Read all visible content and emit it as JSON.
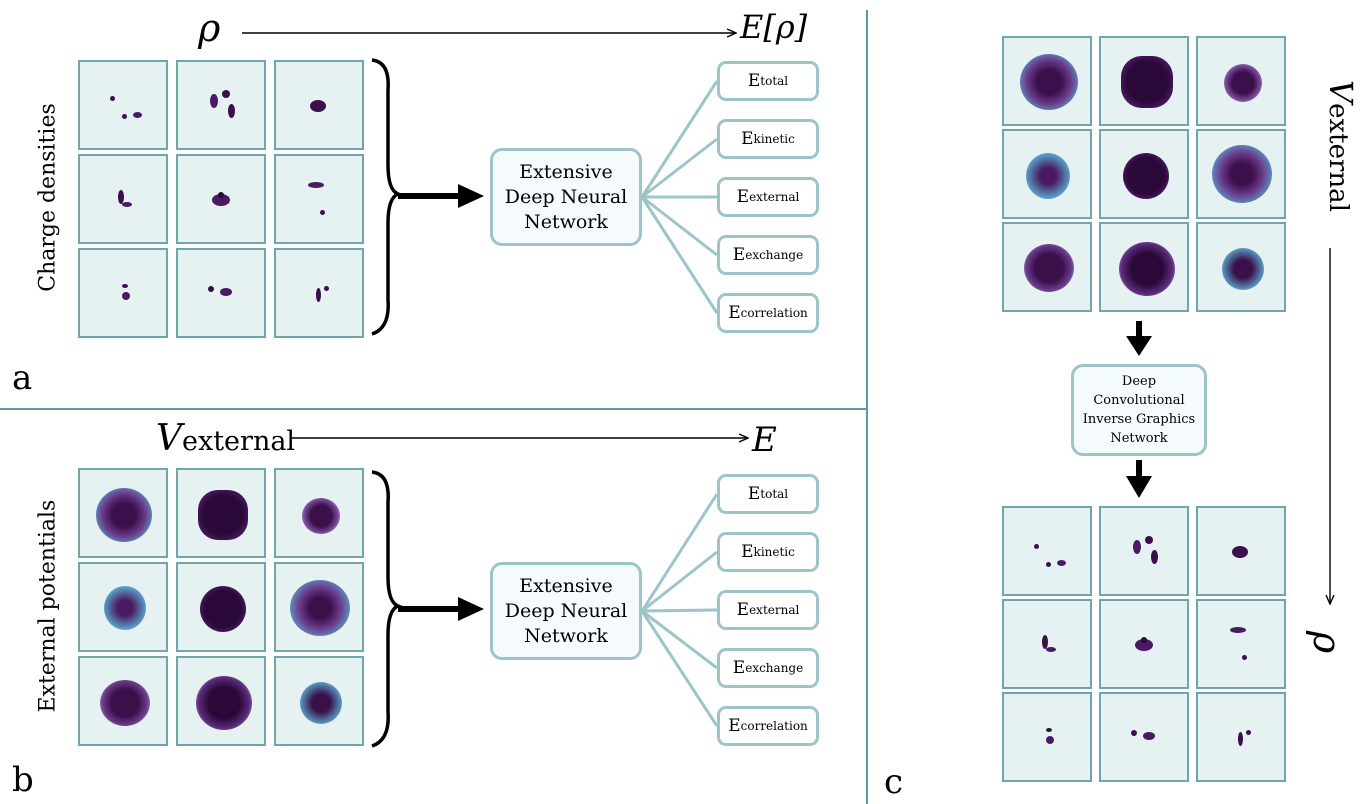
{
  "panel_a": {
    "letter": "a",
    "input_symbol": "ρ",
    "output_symbol": "E[ρ]",
    "side_label": "Charge densities",
    "network_label": [
      "Extensive",
      "Deep Neural",
      "Network"
    ],
    "outputs": [
      {
        "base": "E",
        "sub": "total"
      },
      {
        "base": "E",
        "sub": "kinetic"
      },
      {
        "base": "E",
        "sub": "external"
      },
      {
        "base": "E",
        "sub": "exchange"
      },
      {
        "base": "E",
        "sub": "correlation"
      }
    ]
  },
  "panel_b": {
    "letter": "b",
    "input_symbol": "V",
    "input_sub": "external",
    "output_symbol": "E",
    "side_label": "External potentials",
    "network_label": [
      "Extensive",
      "Deep Neural",
      "Network"
    ],
    "outputs": [
      {
        "base": "E",
        "sub": "total"
      },
      {
        "base": "E",
        "sub": "kinetic"
      },
      {
        "base": "E",
        "sub": "external"
      },
      {
        "base": "E",
        "sub": "exchange"
      },
      {
        "base": "E",
        "sub": "correlation"
      }
    ]
  },
  "panel_c": {
    "letter": "c",
    "network_label": [
      "Deep",
      "Convolutional",
      "Inverse Graphics",
      "Network"
    ],
    "axis_top_symbol": "V",
    "axis_top_sub": "external",
    "axis_bottom_symbol": "ρ"
  },
  "colors": {
    "tile_bg": "#e6f1f1",
    "tile_border": "#6fa5ab",
    "box_border": "#9cc4c9",
    "density_dark": "#3a0f4a",
    "potential_edge": "#5aa0c8",
    "divider": "#5e9aa2"
  }
}
